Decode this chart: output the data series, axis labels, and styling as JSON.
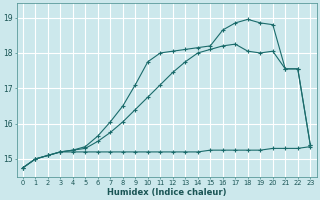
{
  "xlabel": "Humidex (Indice chaleur)",
  "ylabel": "",
  "bg_color": "#cce8ec",
  "grid_color": "#ffffff",
  "line_color": "#1a6b6b",
  "xlim": [
    -0.5,
    23.5
  ],
  "ylim": [
    14.5,
    19.4
  ],
  "xticks": [
    0,
    1,
    2,
    3,
    4,
    5,
    6,
    7,
    8,
    9,
    10,
    11,
    12,
    13,
    14,
    15,
    16,
    17,
    18,
    19,
    20,
    21,
    22,
    23
  ],
  "yticks": [
    15,
    16,
    17,
    18,
    19
  ],
  "line1_x": [
    0,
    1,
    2,
    3,
    4,
    5,
    6,
    7,
    8,
    9,
    10,
    11,
    12,
    13,
    14,
    15,
    16,
    17,
    18,
    19,
    20,
    21,
    22,
    23
  ],
  "line1_y": [
    14.75,
    15.0,
    15.1,
    15.2,
    15.2,
    15.2,
    15.2,
    15.2,
    15.2,
    15.2,
    15.2,
    15.2,
    15.2,
    15.2,
    15.2,
    15.25,
    15.25,
    15.25,
    15.25,
    15.25,
    15.3,
    15.3,
    15.3,
    15.35
  ],
  "line2_x": [
    0,
    1,
    2,
    3,
    4,
    5,
    6,
    7,
    8,
    9,
    10,
    11,
    12,
    13,
    14,
    15,
    16,
    17,
    18,
    19,
    20,
    21,
    22,
    23
  ],
  "line2_y": [
    14.75,
    15.0,
    15.1,
    15.2,
    15.25,
    15.3,
    15.5,
    15.75,
    16.05,
    16.4,
    16.75,
    17.1,
    17.45,
    17.75,
    18.0,
    18.1,
    18.2,
    18.25,
    18.05,
    18.0,
    18.05,
    17.55,
    17.55,
    15.4
  ],
  "line3_x": [
    0,
    1,
    2,
    3,
    4,
    5,
    6,
    7,
    8,
    9,
    10,
    11,
    12,
    13,
    14,
    15,
    16,
    17,
    18,
    19,
    20,
    21,
    22,
    23
  ],
  "line3_y": [
    14.75,
    15.0,
    15.1,
    15.2,
    15.25,
    15.35,
    15.65,
    16.05,
    16.5,
    17.1,
    17.75,
    18.0,
    18.05,
    18.1,
    18.15,
    18.2,
    18.65,
    18.85,
    18.95,
    18.85,
    18.8,
    17.55,
    17.55,
    15.4
  ]
}
